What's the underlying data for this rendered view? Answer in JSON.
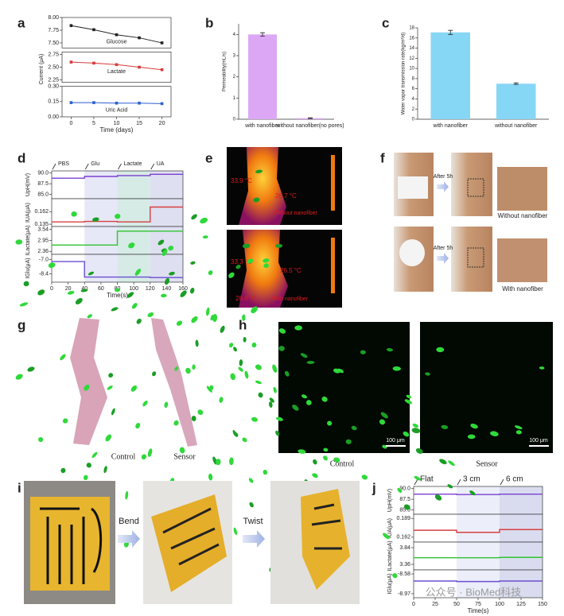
{
  "panel_labels": [
    "a",
    "b",
    "c",
    "d",
    "e",
    "f",
    "g",
    "h",
    "i",
    "j"
  ],
  "chart_data": [
    {
      "type": "line",
      "xlabel": "Time (days)",
      "ylabel": "Current (μA)",
      "markers": true,
      "series_labels": true,
      "xlim": [
        -2,
        22
      ],
      "xticks": [
        0,
        5,
        10,
        15,
        20
      ],
      "x": [
        0,
        5,
        10,
        15,
        20
      ],
      "rows": [
        {
          "ylim": [
            7.4,
            8.0
          ],
          "yticks": [
            {
              "value": 7.5,
              "label": "7.50"
            },
            7.75,
            {
              "value": 8,
              "label": "8.00"
            }
          ],
          "series": [
            {
              "name": "Glucose",
              "color": "#222222",
              "values": [
                7.84,
                7.76,
                7.66,
                7.6,
                7.5
              ]
            }
          ]
        },
        {
          "ylim": [
            2.2,
            2.8
          ],
          "yticks": [
            2.25,
            {
              "value": 2.5,
              "label": "2.50"
            },
            2.75
          ],
          "series": [
            {
              "name": "Lactate",
              "color": "#d93a3a",
              "values": [
                2.6,
                2.58,
                2.55,
                2.5,
                2.45
              ]
            }
          ]
        },
        {
          "ylim": [
            0,
            0.3
          ],
          "yticks": [
            {
              "value": 0,
              "label": "0.00"
            },
            0.15,
            {
              "value": 0.3,
              "label": "0.30"
            }
          ],
          "series": [
            {
              "name": "Uric Acid",
              "color": "#2b5fd1",
              "values": [
                0.14,
                0.14,
                0.135,
                0.135,
                0.13
              ]
            }
          ]
        }
      ]
    },
    {
      "type": "bar",
      "ylabel": "Permeability(mL/s)",
      "categories": [
        "with nanofiber",
        "without nanofiber(no pores)"
      ],
      "values": [
        4.0,
        0.05
      ],
      "errors": [
        0.08,
        0.02
      ],
      "color": "#dca8f5",
      "ylim": [
        0,
        4.5
      ],
      "yticks": [
        0,
        1,
        2,
        3,
        4
      ]
    },
    {
      "type": "bar",
      "ylabel": "Water vapor transmission rate(kg/m²/d)",
      "categories": [
        "with nanofiber",
        "without nanofiber"
      ],
      "values": [
        17.1,
        7.0
      ],
      "errors": [
        0.4,
        0.15
      ],
      "color": "#86d6f5",
      "ylim": [
        0,
        18
      ],
      "yticks": [
        0,
        2,
        4,
        6,
        8,
        10,
        12,
        14,
        16,
        18
      ]
    },
    {
      "type": "line",
      "xlabel": "Time(s)",
      "xlim": [
        0,
        160
      ],
      "xticks": [
        0,
        20,
        40,
        60,
        80,
        100,
        120,
        140,
        160
      ],
      "x": [
        0,
        40,
        40,
        80,
        80,
        120,
        120,
        160
      ],
      "events": [
        {
          "label": "PBS",
          "x": 0,
          "color": "#222222"
        },
        {
          "label": "Glu",
          "x": 40,
          "color": "#5b6fd6"
        },
        {
          "label": "Lactate",
          "x": 80,
          "color": "#2fa84f"
        },
        {
          "label": "UA",
          "x": 120,
          "color": "#d12b2b"
        }
      ],
      "rows": [
        {
          "ylabel": "UpH(mV)",
          "ylim": [
            84,
            90.5
          ],
          "yticks": [
            {
              "value": 85,
              "label": "85.0"
            },
            87.5,
            {
              "value": 90,
              "label": "90.0"
            }
          ],
          "series": [
            {
              "color": "#7b3fd1",
              "values": [
                88.8,
                88.8,
                89.2,
                89.2,
                89.4,
                89.4,
                89.7,
                89.7
              ]
            }
          ]
        },
        {
          "ylabel": "IUA(μA)",
          "ylim": [
            0.13,
            0.19
          ],
          "yticks": [
            0.135,
            0.162
          ],
          "series": [
            {
              "color": "#d64040",
              "values": [
                0.14,
                0.14,
                0.141,
                0.141,
                0.14,
                0.14,
                0.172,
                0.172
              ]
            }
          ]
        },
        {
          "ylabel": "ILactate(μA)",
          "ylim": [
            2.2,
            3.7
          ],
          "yticks": [
            2.36,
            2.95,
            3.54
          ],
          "series": [
            {
              "color": "#2fc42f",
              "values": [
                2.7,
                2.7,
                2.7,
                2.7,
                3.45,
                3.45,
                3.45,
                3.45
              ]
            }
          ]
        },
        {
          "ylabel": "IGlu(μA)",
          "ylim": [
            -9.2,
            -6.5
          ],
          "yticks": [
            -8.4,
            {
              "value": -7,
              "label": "-7.0"
            }
          ],
          "series": [
            {
              "color": "#6a4fd0",
              "values": [
                -7.2,
                -7.2,
                -8.7,
                -8.7,
                -8.7,
                -8.7,
                -8.75,
                -8.75
              ]
            }
          ]
        }
      ]
    },
    {
      "type": "line",
      "xlabel": "Time(s)",
      "xlim": [
        0,
        150
      ],
      "xticks": [
        0,
        25,
        50,
        75,
        100,
        125,
        150
      ],
      "x": [
        0,
        50,
        50,
        100,
        100,
        150
      ],
      "events": [
        {
          "label": "Flat",
          "x": 0,
          "color": "#222222"
        },
        {
          "label": "3 cm",
          "x": 50,
          "color": "#5a9fd8"
        },
        {
          "label": "6 cm",
          "x": 100,
          "color": "#f0a060"
        }
      ],
      "rows": [
        {
          "ylabel": "UpH(mV)",
          "ylim": [
            84,
            90.5
          ],
          "yticks": [
            {
              "value": 85,
              "label": "85.0"
            },
            87.5,
            {
              "value": 90,
              "label": "90.0"
            }
          ],
          "series": [
            {
              "color": "#7b3fd1",
              "values": [
                88.7,
                88.7,
                88.6,
                88.6,
                88.7,
                88.7
              ]
            }
          ]
        },
        {
          "ylabel": "IUA(μA)",
          "ylim": [
            0.155,
            0.195
          ],
          "yticks": [
            0.162,
            0.189
          ],
          "series": [
            {
              "color": "#d64040",
              "values": [
                0.172,
                0.172,
                0.169,
                0.169,
                0.173,
                0.173
              ]
            }
          ]
        },
        {
          "ylabel": "ILactate(μA)",
          "ylim": [
            3.2,
            4.0
          ],
          "yticks": [
            3.36,
            3.84
          ],
          "series": [
            {
              "color": "#2fc42f",
              "values": [
                3.55,
                3.55,
                3.55,
                3.55,
                3.56,
                3.56
              ]
            }
          ]
        },
        {
          "ylabel": "IGlu(μA)",
          "ylim": [
            -9.05,
            -8.5
          ],
          "yticks": [
            -8.97,
            -8.58
          ],
          "series": [
            {
              "color": "#6a4fd0",
              "values": [
                -8.72,
                -8.72,
                -8.73,
                -8.73,
                -8.72,
                -8.72
              ]
            }
          ]
        }
      ]
    }
  ],
  "images": {
    "e": [
      "33.9 °C",
      "26.7 °C",
      "Without nanofiber",
      "33.3 °C",
      "26.5 °C",
      "28.8 °C",
      "With nanofiber"
    ],
    "f": [
      "After 5h",
      "Without nanofiber",
      "After 5h",
      "With nanofiber"
    ],
    "g": [
      "Control",
      "Sensor"
    ],
    "h": [
      "100 μm",
      "100 μm",
      "Control",
      "Sensor"
    ],
    "i": [
      "Bend",
      "Twist"
    ]
  },
  "watermark": "公众号 · BioMed科技"
}
